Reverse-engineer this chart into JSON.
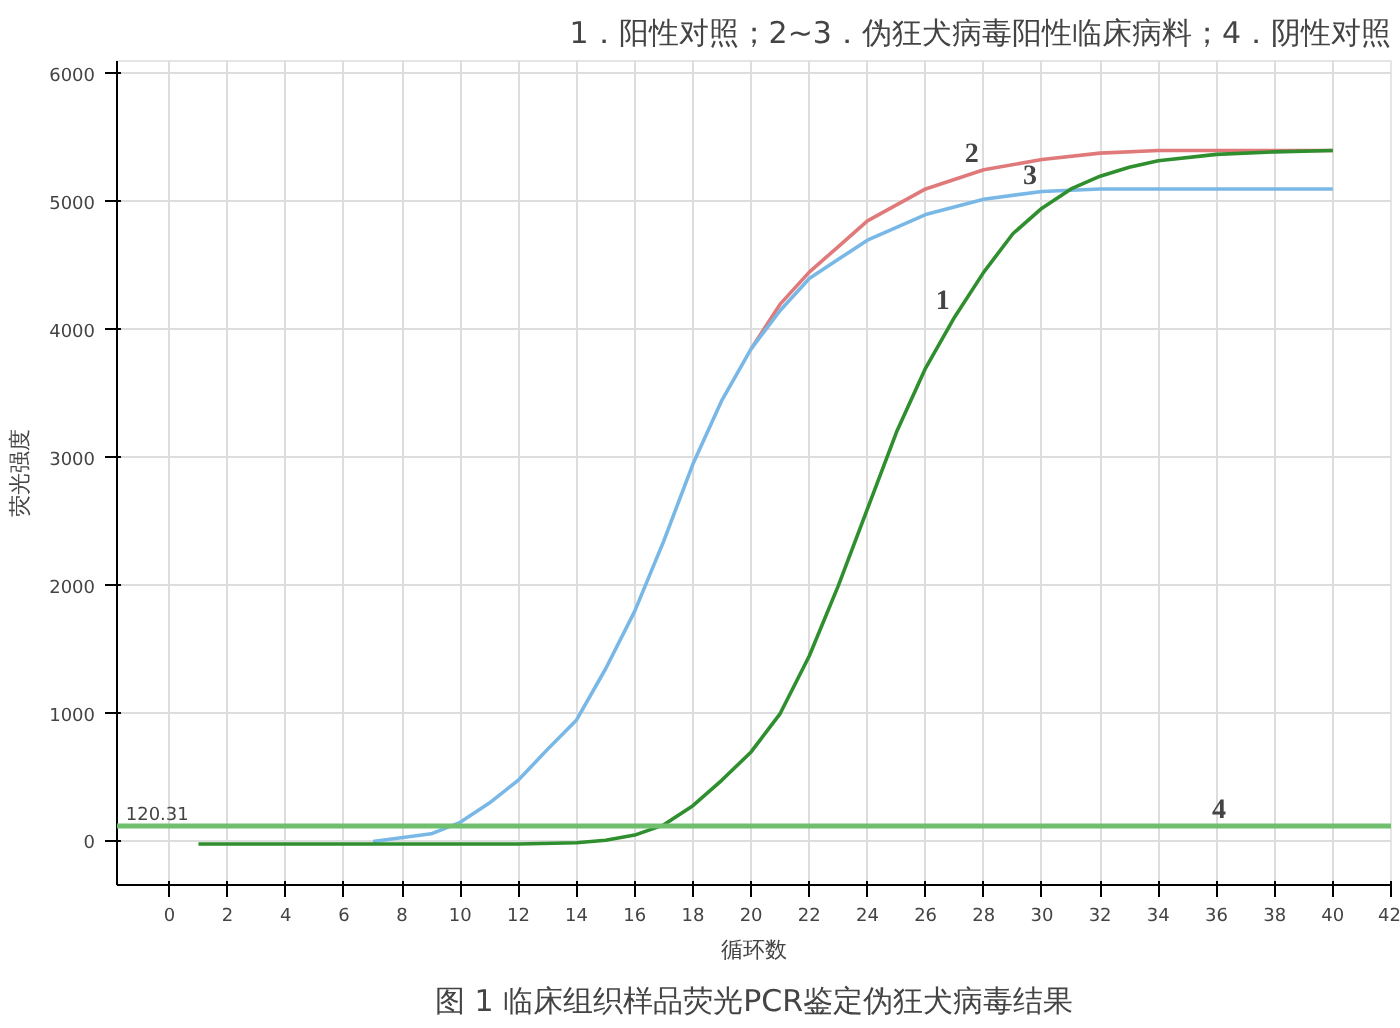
{
  "chart_data": {
    "type": "line",
    "subtitle": "1．阳性对照；2~3．伪狂犬病毒阳性临床病料；4．阴性对照",
    "title": "图 1 临床组织样品荧光PCR鉴定伪狂犬病毒结果",
    "xlabel": "循环数",
    "ylabel": "荧光强度",
    "xlim": [
      -1.8,
      42
    ],
    "ylim": [
      -340,
      6100
    ],
    "xticks": [
      0,
      2,
      4,
      6,
      8,
      10,
      12,
      14,
      16,
      18,
      20,
      22,
      24,
      26,
      28,
      30,
      32,
      34,
      36,
      38,
      40,
      42
    ],
    "yticks": [
      0,
      1000,
      2000,
      3000,
      4000,
      5000,
      6000
    ],
    "grid": true,
    "line_style": "solid",
    "series": [
      {
        "color": "#e07a7a",
        "x": [
          20,
          21,
          22,
          23,
          24,
          26,
          28,
          30,
          32,
          34,
          36,
          38,
          40
        ],
        "values": [
          3850,
          4200,
          4450,
          4650,
          4850,
          5100,
          5250,
          5330,
          5380,
          5400,
          5400,
          5400,
          5400
        ]
      },
      {
        "color": "#79b8e6",
        "x": [
          7,
          9,
          10,
          11,
          12,
          13,
          14,
          15,
          16,
          17,
          18,
          19,
          20,
          21,
          22,
          23,
          24,
          26,
          28,
          30,
          32,
          34,
          36,
          38,
          40
        ],
        "values": [
          0,
          60,
          150,
          300,
          480,
          720,
          950,
          1350,
          1800,
          2350,
          2950,
          3450,
          3850,
          4150,
          4400,
          4550,
          4700,
          4900,
          5020,
          5080,
          5100,
          5100,
          5100,
          5100,
          5100
        ]
      },
      {
        "color": "#2f8f2f",
        "x": [
          1,
          4,
          8,
          12,
          14,
          15,
          16,
          17,
          18,
          19,
          20,
          21,
          22,
          23,
          24,
          25,
          26,
          27,
          28,
          29,
          30,
          31,
          32,
          33,
          34,
          36,
          38,
          40
        ],
        "values": [
          -20,
          -20,
          -20,
          -20,
          -10,
          10,
          50,
          130,
          280,
          480,
          700,
          1000,
          1450,
          2000,
          2600,
          3200,
          3700,
          4100,
          4450,
          4750,
          4950,
          5100,
          5200,
          5270,
          5320,
          5370,
          5390,
          5400
        ]
      }
    ],
    "ref_lines": [
      {
        "axis": "y",
        "value": 120.31,
        "label": "120.31",
        "color": "#6fbf6f"
      }
    ],
    "annotations": [
      {
        "text": "1",
        "x": 27,
        "y": 4100
      },
      {
        "text": "2",
        "x": 28,
        "y": 5250
      },
      {
        "text": "3",
        "x": 30,
        "y": 5080
      },
      {
        "text": "4",
        "x": 36.5,
        "y": 120.31
      }
    ]
  }
}
